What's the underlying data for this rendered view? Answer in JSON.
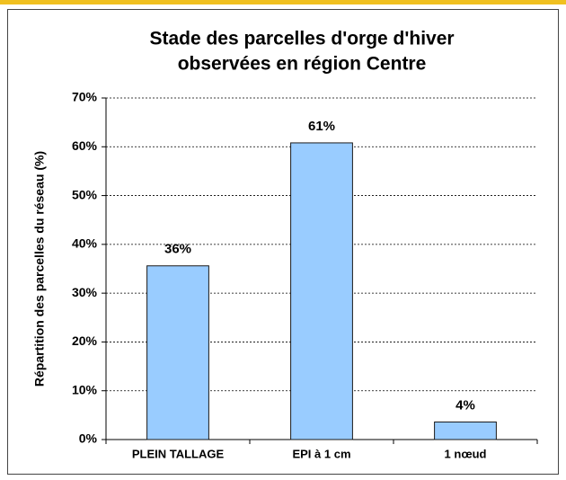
{
  "chart_data": {
    "type": "bar",
    "title": [
      "Stade des parcelles d'orge d'hiver",
      "observées en région Centre"
    ],
    "y_label": "Répartition des parcelles du réseau (%)",
    "categories": [
      "PLEIN TALLAGE",
      "EPI à 1 cm",
      "1 nœud"
    ],
    "values": [
      35.6,
      60.8,
      3.6
    ],
    "value_labels": [
      "36%",
      "61%",
      "4%"
    ],
    "color": "#99ccff",
    "ylim": [
      0,
      70
    ],
    "yticks": [
      {
        "value": 0,
        "label": "0%"
      },
      {
        "value": 10,
        "label": "10%"
      },
      {
        "value": 20,
        "label": "20%"
      },
      {
        "value": 30,
        "label": "30%"
      },
      {
        "value": 40,
        "label": "40%"
      },
      {
        "value": 50,
        "label": "50%"
      },
      {
        "value": 60,
        "label": "60%"
      },
      {
        "value": 70,
        "label": "70%"
      }
    ],
    "grid": true
  }
}
